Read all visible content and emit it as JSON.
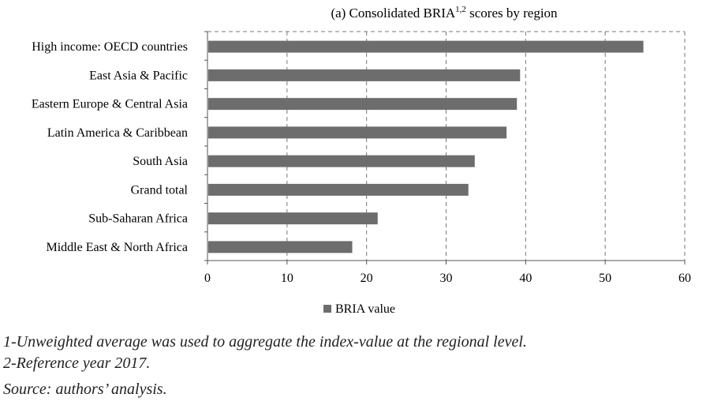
{
  "chart_data": {
    "type": "bar",
    "orientation": "horizontal",
    "title_main": "(a) Consolidated BRIA",
    "title_sup": "1,2",
    "title_end": " scores by region",
    "categories": [
      "High income: OECD countries",
      "East Asia & Pacific",
      "Eastern Europe & Central Asia",
      "Latin America & Caribbean",
      "South Asia",
      "Grand total",
      "Sub-Saharan Africa",
      "Middle East & North Africa"
    ],
    "series": [
      {
        "name": "BRIA value",
        "values": [
          54.8,
          39.3,
          38.9,
          37.6,
          33.6,
          32.8,
          21.4,
          18.2
        ],
        "color": "#6d6d6d"
      }
    ],
    "xlim": [
      0,
      60
    ],
    "xticks": [
      "0",
      "10",
      "20",
      "30",
      "40",
      "50",
      "60"
    ],
    "grid": "vertical dashed",
    "legend_position": "bottom"
  },
  "notes": {
    "line1": "1-Unweighted average was used to aggregate the index-value at the regional level.",
    "line2": "2-Reference year 2017.",
    "source": "Source: authors’ analysis."
  }
}
